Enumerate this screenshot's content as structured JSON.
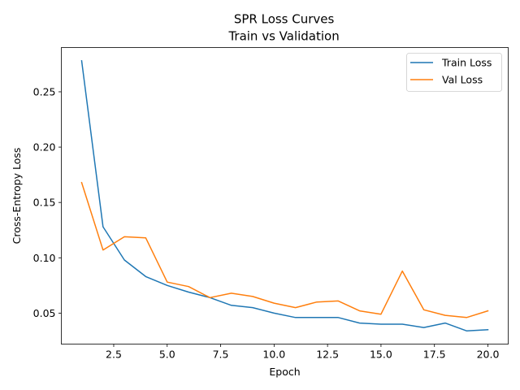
{
  "chart_data": {
    "type": "line",
    "title": "SPR Loss Curves",
    "subtitle": "Train vs Validation",
    "xlabel": "Epoch",
    "ylabel": "Cross-Entropy Loss",
    "xlim": [
      0.05,
      20.95
    ],
    "ylim": [
      0.022,
      0.29
    ],
    "xticks": [
      {
        "value": 2.5,
        "label": "2.5"
      },
      {
        "value": 5.0,
        "label": "5.0"
      },
      {
        "value": 7.5,
        "label": "7.5"
      },
      {
        "value": 10.0,
        "label": "10.0"
      },
      {
        "value": 12.5,
        "label": "12.5"
      },
      {
        "value": 15.0,
        "label": "15.0"
      },
      {
        "value": 17.5,
        "label": "17.5"
      },
      {
        "value": 20.0,
        "label": "20.0"
      }
    ],
    "yticks": [
      {
        "value": 0.05,
        "label": "0.05"
      },
      {
        "value": 0.1,
        "label": "0.10"
      },
      {
        "value": 0.15,
        "label": "0.15"
      },
      {
        "value": 0.2,
        "label": "0.20"
      },
      {
        "value": 0.25,
        "label": "0.25"
      }
    ],
    "grid": false,
    "legend_position": "top-right",
    "x": [
      1,
      2,
      3,
      4,
      5,
      6,
      7,
      8,
      9,
      10,
      11,
      12,
      13,
      14,
      15,
      16,
      17,
      18,
      19,
      20
    ],
    "series": [
      {
        "name": "Train Loss",
        "color": "#1f77b4",
        "values": [
          0.278,
          0.128,
          0.098,
          0.083,
          0.075,
          0.069,
          0.064,
          0.057,
          0.055,
          0.05,
          0.046,
          0.046,
          0.046,
          0.041,
          0.04,
          0.04,
          0.037,
          0.041,
          0.034,
          0.035
        ]
      },
      {
        "name": "Val Loss",
        "color": "#ff7f0e",
        "values": [
          0.168,
          0.107,
          0.119,
          0.118,
          0.078,
          0.074,
          0.064,
          0.068,
          0.065,
          0.059,
          0.055,
          0.06,
          0.061,
          0.052,
          0.049,
          0.088,
          0.053,
          0.048,
          0.046,
          0.052
        ]
      }
    ]
  }
}
